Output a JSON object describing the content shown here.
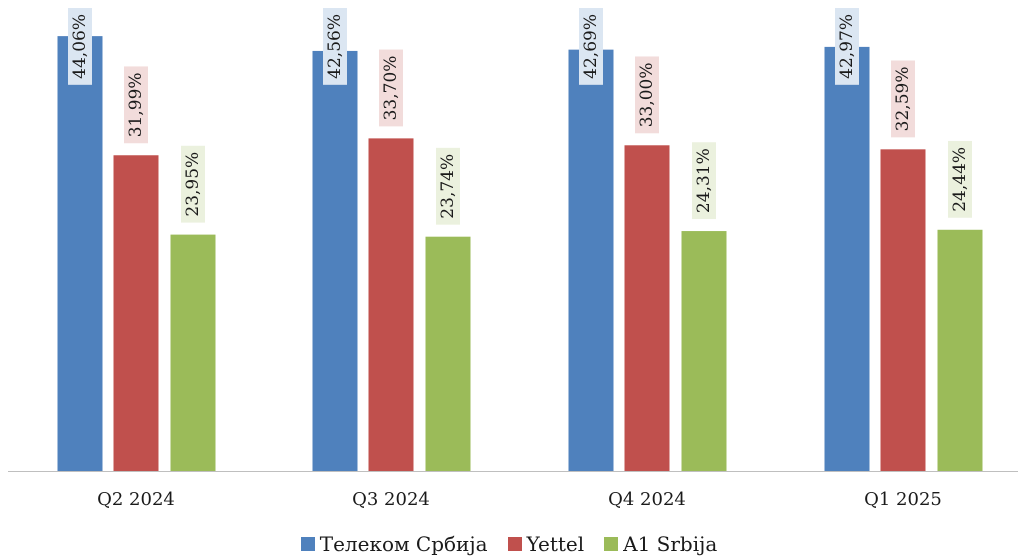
{
  "chart_data": {
    "type": "bar",
    "categories": [
      "Q2 2024",
      "Q3 2024",
      "Q4 2024",
      "Q1 2025"
    ],
    "series": [
      {
        "name": "Телеком Србија",
        "values": [
          44.06,
          42.56,
          42.69,
          42.97
        ],
        "labels": [
          "44,06%",
          "42,56%",
          "42,69%",
          "42,97%"
        ],
        "color": "#4f81bd",
        "label_bg": "#dbe6f2"
      },
      {
        "name": "Yettel",
        "values": [
          31.99,
          33.7,
          33.0,
          32.59
        ],
        "labels": [
          "31,99%",
          "33,70%",
          "33,00%",
          "32,59%"
        ],
        "color": "#c0504d",
        "label_bg": "#f2dcdb"
      },
      {
        "name": "A1 Srbija",
        "values": [
          23.95,
          23.74,
          24.31,
          24.44
        ],
        "labels": [
          "23,95%",
          "23,74%",
          "24,31%",
          "24,44%"
        ],
        "color": "#9bbb59",
        "label_bg": "#ebf1de"
      }
    ],
    "title": "",
    "xlabel": "",
    "ylabel": "",
    "y_axis_visible": false,
    "grid": false,
    "legend_position": "bottom",
    "axis_color": "#bfbfbf"
  }
}
